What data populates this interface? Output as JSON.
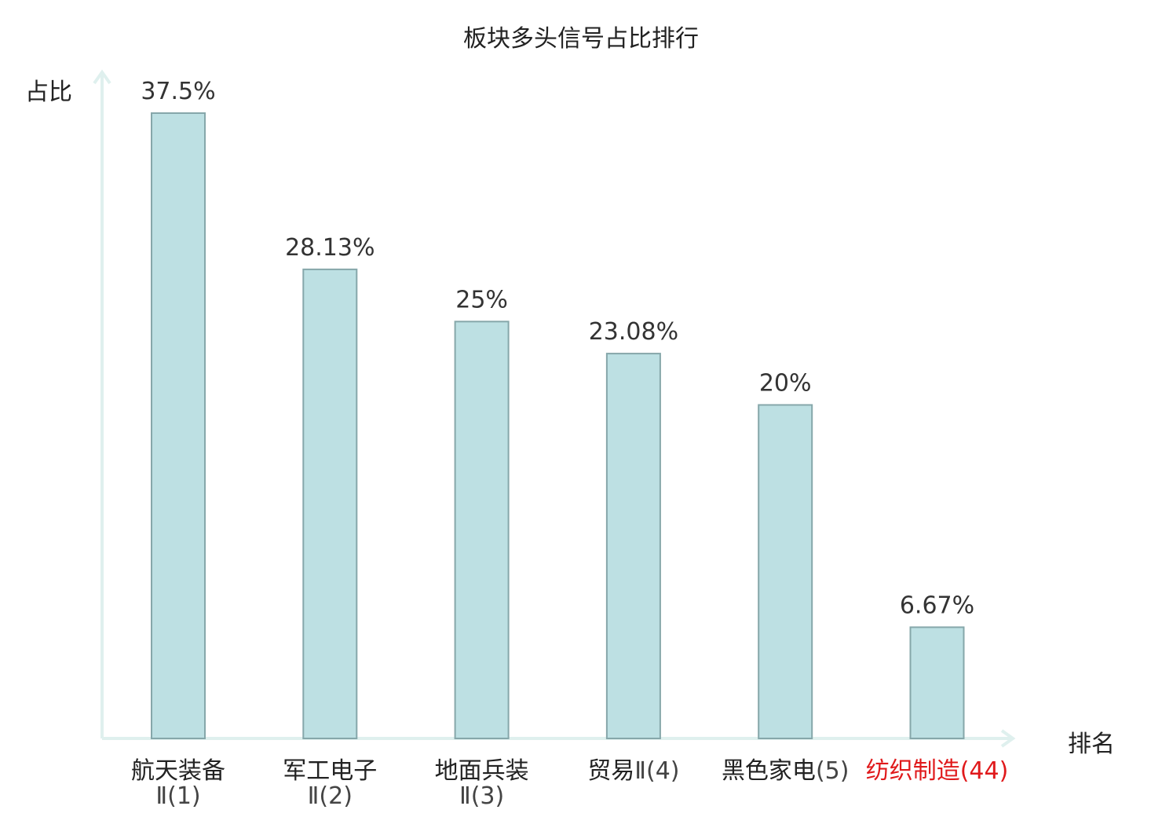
{
  "chart_data": {
    "type": "bar",
    "title": "板块多头信号占比排行",
    "ylabel": "占比",
    "xlabel": "排名",
    "ylim": [
      0,
      40
    ],
    "grid": false,
    "categories": [
      {
        "name": "航天装备",
        "suffix": "Ⅱ(1)",
        "wrap": true,
        "highlight": false
      },
      {
        "name": "军工电子",
        "suffix": "Ⅱ(2)",
        "wrap": true,
        "highlight": false
      },
      {
        "name": "地面兵装",
        "suffix": "Ⅱ(3)",
        "wrap": true,
        "highlight": false
      },
      {
        "name": "贸易",
        "suffix": "Ⅱ(4)",
        "wrap": false,
        "highlight": false
      },
      {
        "name": "黑色家电",
        "suffix": "(5)",
        "wrap": false,
        "highlight": false
      },
      {
        "name": "纺织制造",
        "suffix": "(44)",
        "wrap": false,
        "highlight": true
      }
    ],
    "values": [
      37.5,
      28.13,
      25,
      23.08,
      20,
      6.67
    ],
    "value_labels": [
      "37.5%",
      "28.13%",
      "25%",
      "23.08%",
      "20%",
      "6.67%"
    ],
    "colors": {
      "bar_fill": "#bde0e3",
      "bar_stroke": "#86a7aa",
      "axis": "#dff0ee",
      "highlight": "#e0191b"
    }
  }
}
